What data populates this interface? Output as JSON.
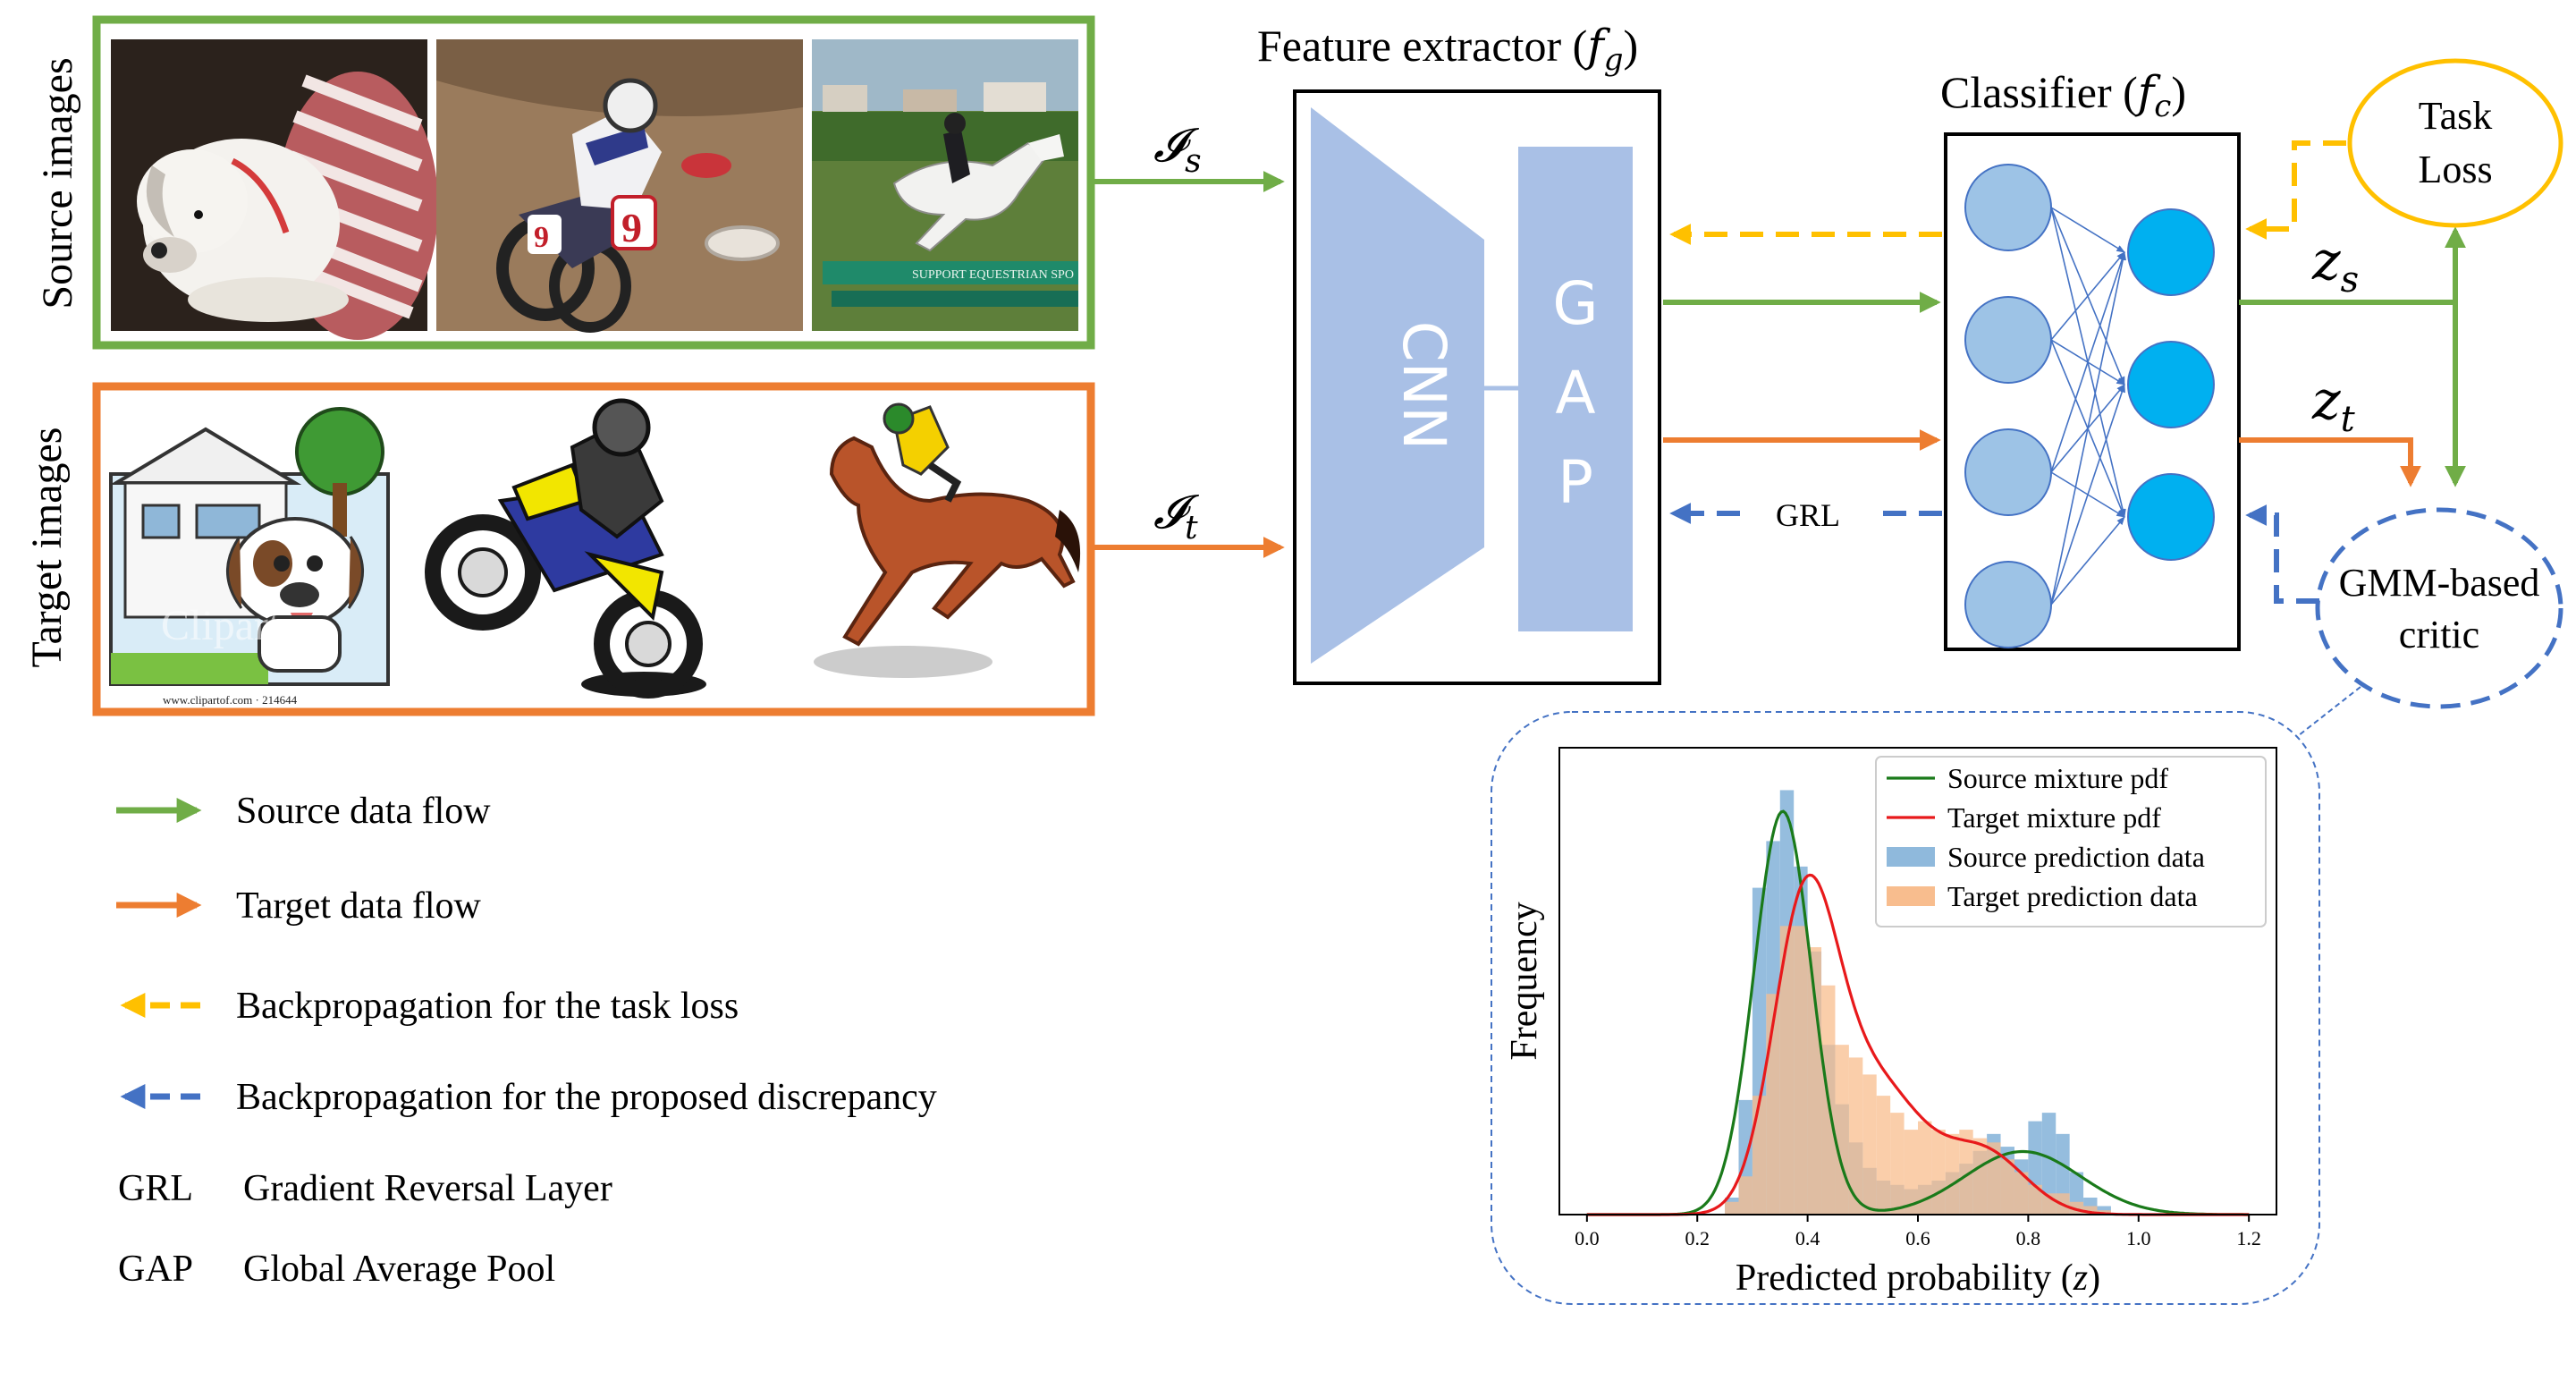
{
  "colors": {
    "source": "#70ad47",
    "target": "#ed7d31",
    "task_loss": "#ffc000",
    "discrepancy": "#4472c4",
    "cnn_block": "#a9c0e6",
    "neuron_hidden": "#9dc3e6",
    "neuron_output": "#00b0f0"
  },
  "images": {
    "source_label": "Source images",
    "target_label": "Target images",
    "target_watermark": "Clipart",
    "target_caption": "www.clipartof.com · 214644",
    "source_sign": "SUPPORT EQUESTRIAN SPO"
  },
  "flow": {
    "source_input_symbol": "𝓘",
    "source_input_sub": "s",
    "target_input_symbol": "𝓘",
    "target_input_sub": "t",
    "grl_label": "GRL",
    "zs_symbol": "z",
    "zs_sub": "s",
    "zt_symbol": "z",
    "zt_sub": "t"
  },
  "feature_extractor": {
    "title_prefix": "Feature extractor (",
    "title_symbol": "f",
    "title_sub": "g",
    "title_suffix": ")",
    "cnn_label": "CNN",
    "gap_letters": [
      "G",
      "A",
      "P"
    ]
  },
  "classifier": {
    "title_prefix": "Classifier (",
    "title_symbol": "f",
    "title_sub": "c",
    "title_suffix": ")",
    "hidden_count": 4,
    "output_count": 3
  },
  "task_loss": {
    "line1": "Task",
    "line2": "Loss"
  },
  "critic": {
    "line1": "GMM-based",
    "line2": "critic"
  },
  "legend": {
    "source_flow": "Source data flow",
    "target_flow": "Target data flow",
    "backprop_task": "Backpropagation for the task loss",
    "backprop_disc": "Backpropagation for the proposed discrepancy",
    "grl_abbr": "GRL",
    "grl_full": "Gradient Reversal Layer",
    "gap_abbr": "GAP",
    "gap_full": "Global Average Pool"
  },
  "chart_data": {
    "type": "histogram",
    "xlabel_text": "Predicted probability (",
    "xlabel_symbol": "z",
    "xlabel_suffix": ")",
    "ylabel": "Frequency",
    "xlim": [
      -0.05,
      1.25
    ],
    "ylim": [
      0,
      1.1
    ],
    "x_ticks": [
      0.0,
      0.2,
      0.4,
      0.6,
      0.8,
      1.0,
      1.2
    ],
    "x_tick_labels": [
      "0.0",
      "0.2",
      "0.4",
      "0.6",
      "0.8",
      "1.0",
      "1.2"
    ],
    "legend_position": "top-right",
    "bin_width": 0.025,
    "series": [
      {
        "name": "Source mixture pdf",
        "kind": "line",
        "color": "#1a7a1a",
        "components": [
          {
            "weight": 0.76,
            "mean": 0.355,
            "sd": 0.052
          },
          {
            "weight": 0.24,
            "mean": 0.79,
            "sd": 0.105
          }
        ],
        "peak": 0.95
      },
      {
        "name": "Target mixture pdf",
        "kind": "line",
        "color": "#e8191b",
        "components": [
          {
            "weight": 0.52,
            "mean": 0.395,
            "sd": 0.058
          },
          {
            "weight": 0.34,
            "mean": 0.52,
            "sd": 0.085
          },
          {
            "weight": 0.14,
            "mean": 0.72,
            "sd": 0.075
          }
        ],
        "peak": 0.8
      },
      {
        "name": "Source prediction data",
        "kind": "hist",
        "color": "#8fb9dc",
        "bins_start": 0.25,
        "values": [
          0.04,
          0.27,
          0.77,
          0.88,
          1.0,
          0.82,
          0.62,
          0.4,
          0.26,
          0.17,
          0.11,
          0.08,
          0.07,
          0.06,
          0.07,
          0.08,
          0.1,
          0.12,
          0.15,
          0.19,
          0.16,
          0.13,
          0.22,
          0.24,
          0.19,
          0.1,
          0.04,
          0.02
        ]
      },
      {
        "name": "Target prediction data",
        "kind": "hist",
        "color": "#f8bd8e",
        "bins_start": 0.25,
        "values": [
          0.03,
          0.09,
          0.28,
          0.52,
          0.68,
          0.68,
          0.63,
          0.54,
          0.4,
          0.37,
          0.33,
          0.28,
          0.24,
          0.2,
          0.22,
          0.2,
          0.19,
          0.2,
          0.18,
          0.17,
          0.13,
          0.1,
          0.07,
          0.05,
          0.05,
          0.03,
          0.02,
          0.01
        ]
      }
    ]
  }
}
